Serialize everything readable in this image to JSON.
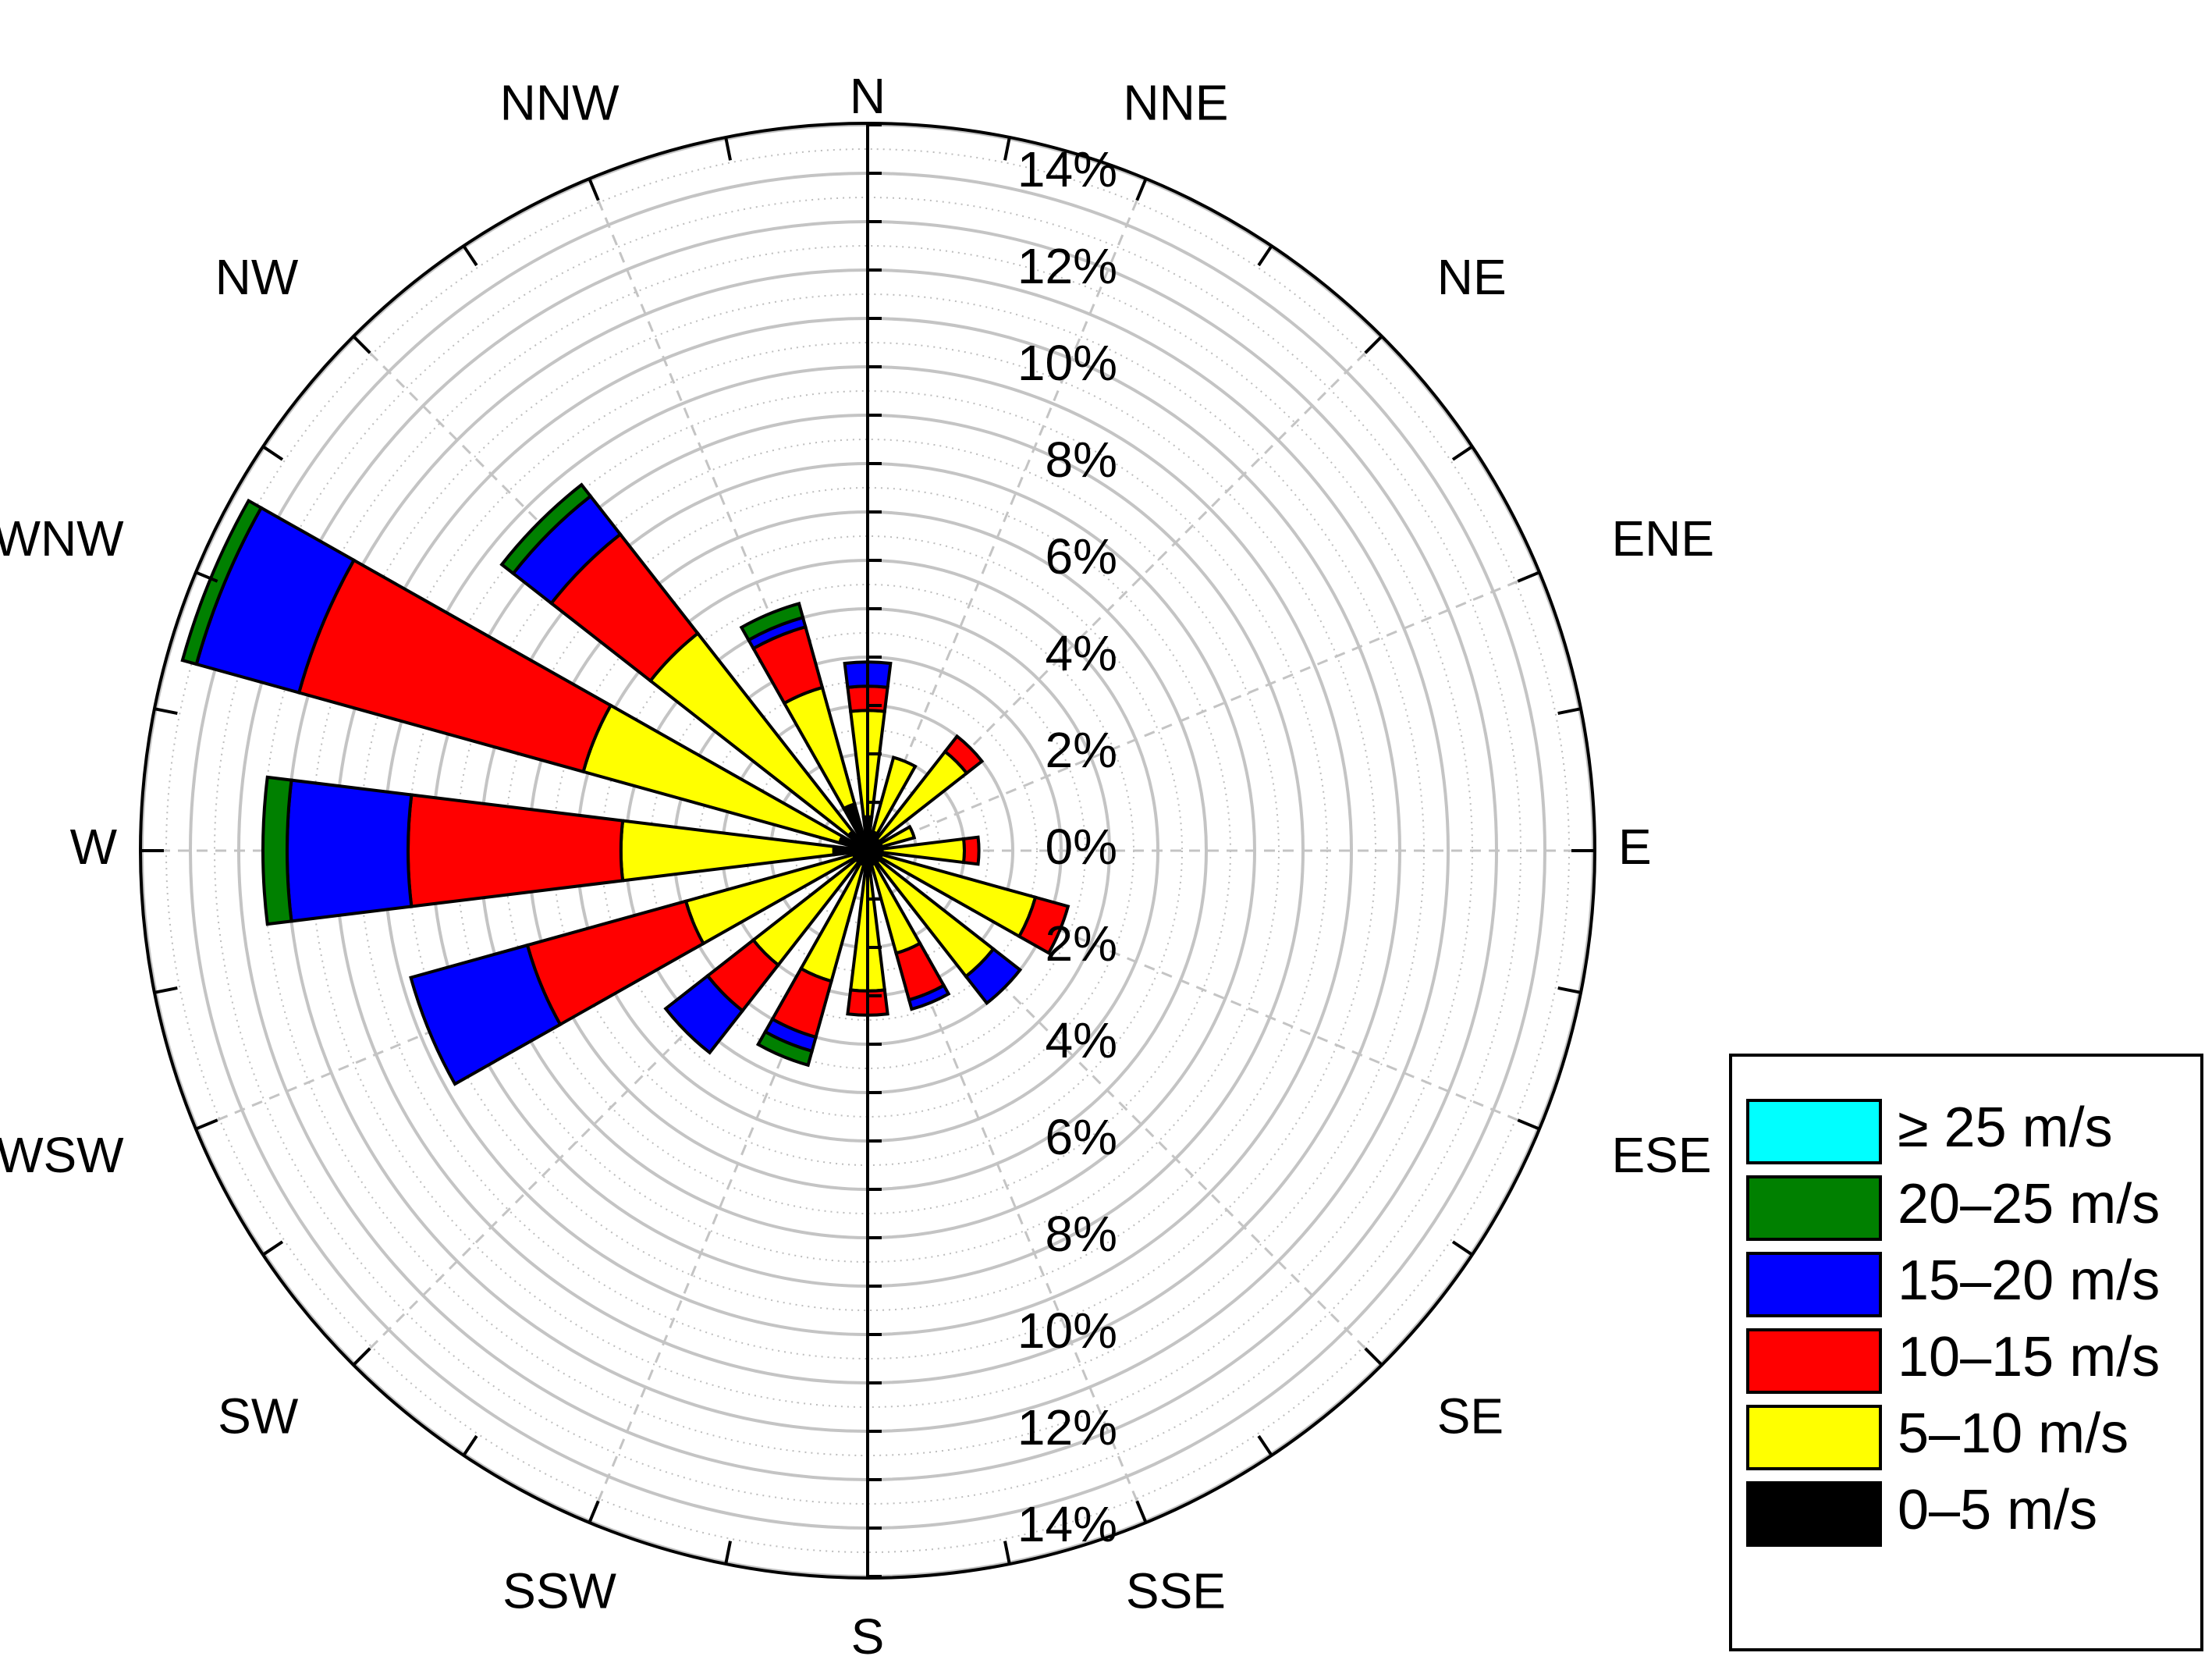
{
  "chart_data": {
    "type": "wind-rose",
    "directions": [
      "N",
      "NNE",
      "NE",
      "ENE",
      "E",
      "ESE",
      "SE",
      "SSE",
      "S",
      "SSW",
      "SW",
      "WSW",
      "W",
      "WNW",
      "NW",
      "NNW"
    ],
    "radial_axis": {
      "max": 15,
      "ticks": [
        0,
        2,
        4,
        6,
        8,
        10,
        12,
        14
      ],
      "tick_labels": [
        "0%",
        "2%",
        "4%",
        "6%",
        "8%",
        "10%",
        "12%",
        "14%"
      ],
      "unit": "%"
    },
    "series": [
      {
        "name": "0–5 m/s",
        "color": "#000000",
        "values": [
          0.7,
          0.4,
          0.3,
          0.3,
          0.3,
          0.3,
          0.3,
          0.3,
          0.3,
          0.3,
          0.3,
          0.3,
          0.7,
          0.6,
          0.5,
          1.0
        ]
      },
      {
        "name": "5–10 m/s",
        "color": "#ffff00",
        "values": [
          2.2,
          1.6,
          2.3,
          0.7,
          1.7,
          3.3,
          3.0,
          1.9,
          2.6,
          2.5,
          2.7,
          3.6,
          4.4,
          5.5,
          5.2,
          2.5
        ]
      },
      {
        "name": "10–15 m/s",
        "color": "#ff0000",
        "values": [
          0.5,
          0.0,
          0.4,
          0.0,
          0.3,
          0.7,
          0.0,
          1.0,
          0.5,
          1.2,
          1.2,
          3.4,
          4.4,
          6.1,
          2.6,
          1.3
        ]
      },
      {
        "name": "15–20 m/s",
        "color": "#0000ff",
        "values": [
          0.5,
          0.0,
          0.0,
          0.0,
          0.0,
          0.0,
          0.7,
          0.2,
          0.0,
          0.3,
          1.1,
          2.5,
          2.5,
          2.2,
          1.0,
          0.2
        ]
      },
      {
        "name": "20–25 m/s",
        "color": "#008000",
        "values": [
          0.0,
          0.0,
          0.0,
          0.0,
          0.0,
          0.0,
          0.0,
          0.0,
          0.0,
          0.3,
          0.0,
          0.0,
          0.5,
          0.3,
          0.3,
          0.3
        ]
      },
      {
        "name": "≥ 25 m/s",
        "color": "#00ffff",
        "values": [
          0,
          0,
          0,
          0,
          0,
          0,
          0,
          0,
          0,
          0,
          0,
          0,
          0,
          0,
          0,
          0
        ]
      }
    ],
    "legend": {
      "position": "bottom-right",
      "entries": [
        "≥ 25 m/s",
        "20–25 m/s",
        "15–20 m/s",
        "10–15 m/s",
        "5–10 m/s",
        "0–5 m/s"
      ]
    },
    "grid": true
  }
}
